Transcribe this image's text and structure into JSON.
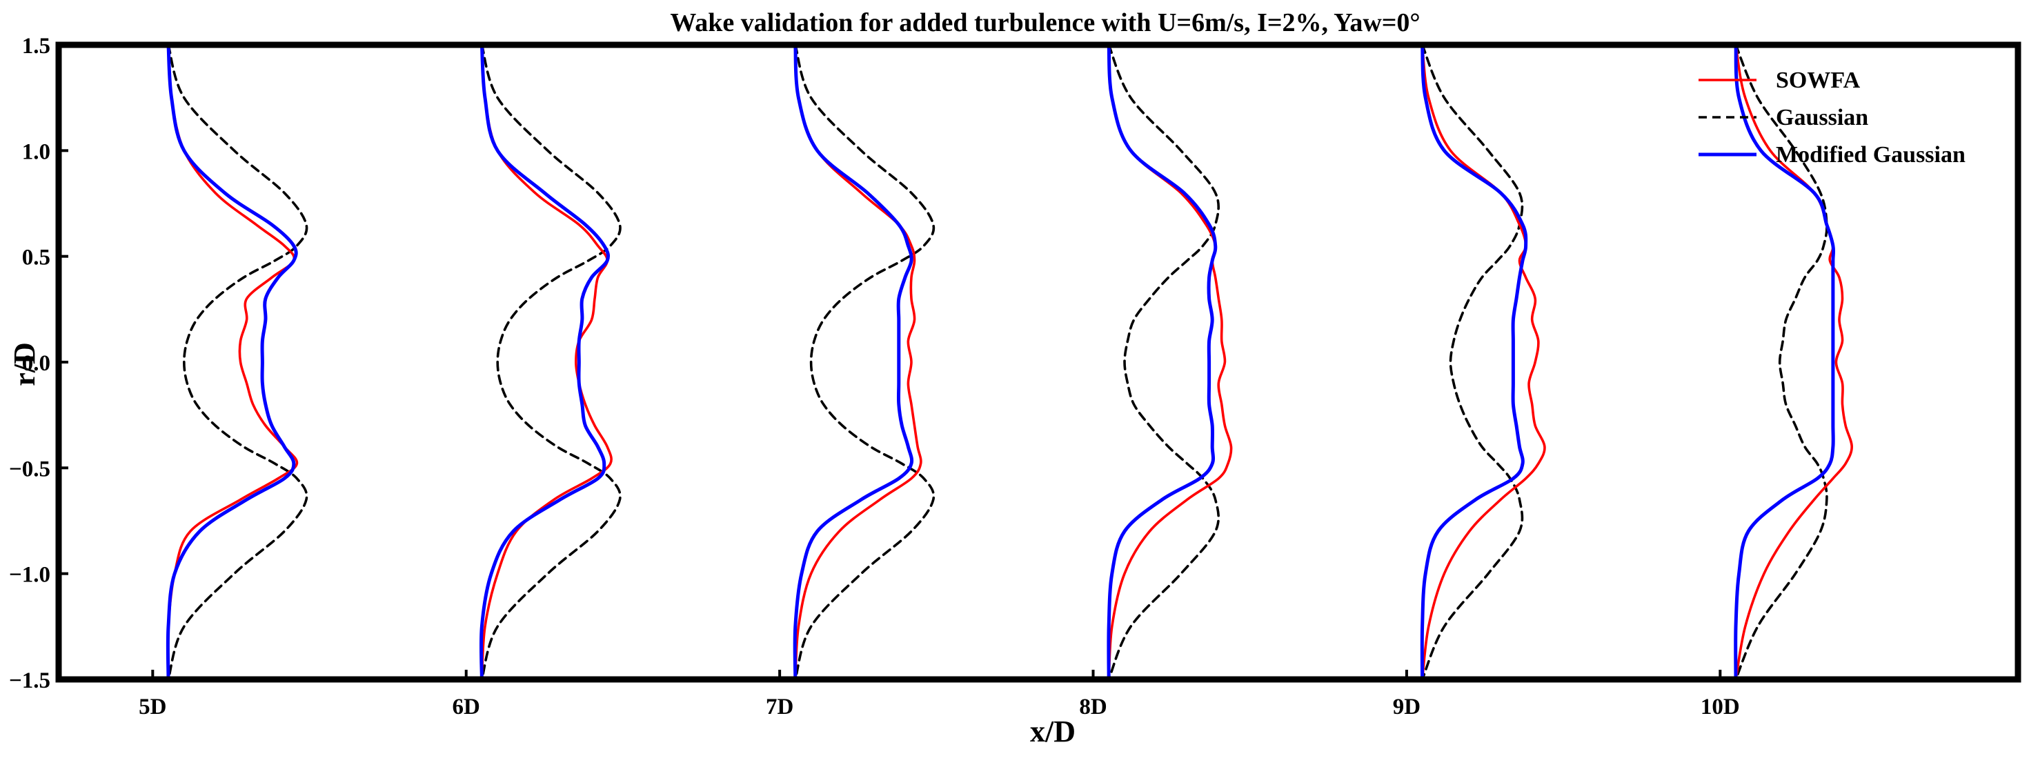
{
  "chart_data": {
    "type": "line",
    "title": "Wake validation for added turbulence with U=6m/s, I=2%, Yaw=0°",
    "xlabel": "x/D",
    "ylabel": "r/D",
    "xlim": [
      4.7,
      10.95
    ],
    "ylim": [
      -1.5,
      1.5
    ],
    "x_ticks": [
      5,
      6,
      7,
      8,
      9,
      10
    ],
    "x_tick_labels": [
      "5D",
      "6D",
      "7D",
      "8D",
      "9D",
      "10D"
    ],
    "y_ticks": [
      -1.5,
      -1.0,
      -0.5,
      0.0,
      0.5,
      1.0,
      1.5
    ],
    "y_tick_labels": [
      "−1.5",
      "−1.0",
      "−0.5",
      "0.0",
      "0.5",
      "1.0",
      "1.5"
    ],
    "grid": false,
    "legend_position": "top-right",
    "series_style": [
      {
        "name": "SOWFA",
        "color": "#ff0000",
        "dash": "solid"
      },
      {
        "name": "Gaussian",
        "color": "#000000",
        "dash": "dashed"
      },
      {
        "name": "Modified Gaussian",
        "color": "#0000ff",
        "dash": "solid"
      }
    ],
    "r": [
      1.5,
      1.25,
      1.0,
      0.8,
      0.65,
      0.55,
      0.48,
      0.4,
      0.3,
      0.2,
      0.1,
      0.0,
      -0.1,
      -0.2,
      -0.3,
      -0.4,
      -0.48,
      -0.55,
      -0.65,
      -0.8,
      -1.0,
      -1.25,
      -1.5
    ],
    "profiles": [
      {
        "station": "5D",
        "x0": 5.05,
        "SOWFA": [
          5.05,
          5.06,
          5.1,
          5.2,
          5.33,
          5.42,
          5.45,
          5.38,
          5.3,
          5.3,
          5.28,
          5.28,
          5.3,
          5.32,
          5.36,
          5.42,
          5.46,
          5.4,
          5.28,
          5.12,
          5.07,
          5.05,
          5.05
        ],
        "Gaussian": [
          5.05,
          5.1,
          5.26,
          5.42,
          5.49,
          5.46,
          5.39,
          5.29,
          5.2,
          5.14,
          5.11,
          5.1,
          5.11,
          5.14,
          5.2,
          5.29,
          5.39,
          5.46,
          5.49,
          5.42,
          5.26,
          5.1,
          5.05
        ],
        "Modified Gaussian": [
          5.05,
          5.06,
          5.1,
          5.23,
          5.38,
          5.45,
          5.45,
          5.4,
          5.36,
          5.36,
          5.35,
          5.35,
          5.35,
          5.36,
          5.38,
          5.42,
          5.45,
          5.42,
          5.3,
          5.15,
          5.07,
          5.05,
          5.05
        ]
      },
      {
        "station": "6D",
        "x0": 6.05,
        "SOWFA": [
          6.05,
          6.06,
          6.1,
          6.22,
          6.36,
          6.42,
          6.45,
          6.42,
          6.41,
          6.4,
          6.36,
          6.35,
          6.36,
          6.38,
          6.41,
          6.45,
          6.46,
          6.4,
          6.28,
          6.16,
          6.1,
          6.06,
          6.05
        ],
        "Gaussian": [
          6.05,
          6.1,
          6.26,
          6.42,
          6.49,
          6.46,
          6.39,
          6.29,
          6.2,
          6.14,
          6.11,
          6.1,
          6.11,
          6.14,
          6.2,
          6.29,
          6.39,
          6.46,
          6.49,
          6.42,
          6.26,
          6.1,
          6.05
        ],
        "Modified Gaussian": [
          6.05,
          6.06,
          6.1,
          6.25,
          6.38,
          6.44,
          6.45,
          6.4,
          6.37,
          6.37,
          6.36,
          6.36,
          6.36,
          6.37,
          6.38,
          6.42,
          6.44,
          6.42,
          6.3,
          6.15,
          6.08,
          6.05,
          6.05
        ]
      },
      {
        "station": "7D",
        "x0": 7.05,
        "SOWFA": [
          7.05,
          7.06,
          7.12,
          7.26,
          7.38,
          7.42,
          7.43,
          7.42,
          7.42,
          7.43,
          7.41,
          7.42,
          7.41,
          7.42,
          7.43,
          7.44,
          7.45,
          7.42,
          7.32,
          7.19,
          7.1,
          7.06,
          7.05
        ],
        "Gaussian": [
          7.05,
          7.1,
          7.26,
          7.42,
          7.49,
          7.46,
          7.39,
          7.29,
          7.2,
          7.14,
          7.11,
          7.1,
          7.11,
          7.14,
          7.2,
          7.29,
          7.39,
          7.46,
          7.49,
          7.42,
          7.26,
          7.1,
          7.05
        ],
        "Modified Gaussian": [
          7.05,
          7.06,
          7.12,
          7.28,
          7.38,
          7.41,
          7.42,
          7.4,
          7.38,
          7.38,
          7.38,
          7.38,
          7.38,
          7.38,
          7.39,
          7.41,
          7.42,
          7.38,
          7.26,
          7.12,
          7.07,
          7.05,
          7.05
        ]
      },
      {
        "station": "8D",
        "x0": 8.05,
        "SOWFA": [
          8.05,
          8.06,
          8.12,
          8.28,
          8.36,
          8.39,
          8.38,
          8.39,
          8.4,
          8.41,
          8.41,
          8.42,
          8.4,
          8.41,
          8.42,
          8.44,
          8.43,
          8.4,
          8.3,
          8.18,
          8.1,
          8.06,
          8.05
        ],
        "Gaussian": [
          8.05,
          8.12,
          8.28,
          8.39,
          8.39,
          8.35,
          8.3,
          8.24,
          8.18,
          8.13,
          8.11,
          8.1,
          8.11,
          8.13,
          8.18,
          8.24,
          8.3,
          8.35,
          8.39,
          8.39,
          8.28,
          8.12,
          8.05
        ],
        "Modified Gaussian": [
          8.05,
          8.06,
          8.12,
          8.29,
          8.37,
          8.39,
          8.38,
          8.37,
          8.37,
          8.38,
          8.37,
          8.37,
          8.37,
          8.37,
          8.38,
          8.38,
          8.38,
          8.34,
          8.22,
          8.1,
          8.06,
          8.05,
          8.05
        ]
      },
      {
        "station": "9D",
        "x0": 9.05,
        "SOWFA": [
          9.05,
          9.07,
          9.14,
          9.3,
          9.36,
          9.38,
          9.36,
          9.38,
          9.41,
          9.4,
          9.42,
          9.41,
          9.39,
          9.4,
          9.41,
          9.44,
          9.42,
          9.38,
          9.3,
          9.2,
          9.12,
          9.07,
          9.05
        ],
        "Gaussian": [
          9.05,
          9.12,
          9.26,
          9.36,
          9.36,
          9.33,
          9.29,
          9.24,
          9.2,
          9.17,
          9.15,
          9.14,
          9.15,
          9.17,
          9.2,
          9.24,
          9.29,
          9.33,
          9.36,
          9.36,
          9.26,
          9.12,
          9.05
        ],
        "Modified Gaussian": [
          9.05,
          9.06,
          9.12,
          9.3,
          9.37,
          9.38,
          9.37,
          9.36,
          9.35,
          9.34,
          9.34,
          9.34,
          9.34,
          9.34,
          9.35,
          9.36,
          9.37,
          9.34,
          9.22,
          9.1,
          9.06,
          9.05,
          9.05
        ]
      },
      {
        "station": "10D",
        "x0": 10.05,
        "SOWFA": [
          10.05,
          10.08,
          10.16,
          10.3,
          10.34,
          10.36,
          10.35,
          10.38,
          10.39,
          10.38,
          10.39,
          10.37,
          10.39,
          10.39,
          10.4,
          10.42,
          10.4,
          10.36,
          10.3,
          10.22,
          10.14,
          10.08,
          10.05
        ],
        "Gaussian": [
          10.05,
          10.12,
          10.24,
          10.32,
          10.34,
          10.33,
          10.31,
          10.27,
          10.24,
          10.21,
          10.2,
          10.19,
          10.2,
          10.21,
          10.24,
          10.27,
          10.31,
          10.33,
          10.34,
          10.32,
          10.24,
          10.12,
          10.05
        ],
        "Modified Gaussian": [
          10.05,
          10.06,
          10.13,
          10.3,
          10.34,
          10.36,
          10.36,
          10.36,
          10.36,
          10.36,
          10.36,
          10.36,
          10.36,
          10.36,
          10.36,
          10.36,
          10.35,
          10.31,
          10.2,
          10.09,
          10.06,
          10.05,
          10.05
        ]
      }
    ]
  }
}
